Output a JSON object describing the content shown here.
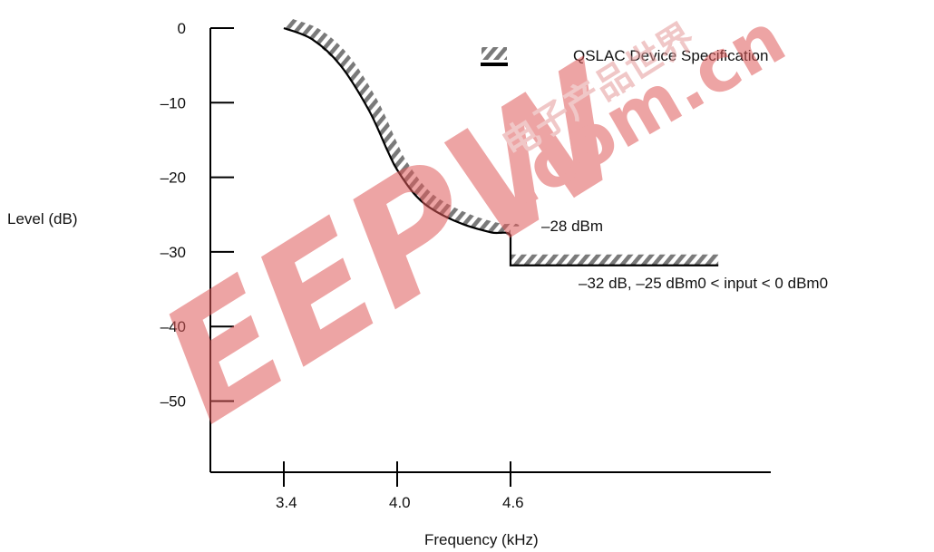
{
  "chart_data": {
    "type": "line",
    "xlabel": "Frequency (kHz)",
    "ylabel": "Level (dB)",
    "x_ticks": [
      {
        "value": 3.4,
        "label": "3.4"
      },
      {
        "value": 4.0,
        "label": "4.0"
      },
      {
        "value": 4.6,
        "label": "4.6"
      }
    ],
    "y_ticks": [
      {
        "value": 0,
        "label": "0"
      },
      {
        "value": -10,
        "label": "–10"
      },
      {
        "value": -20,
        "label": "–20"
      },
      {
        "value": -30,
        "label": "–30"
      },
      {
        "value": -40,
        "label": "–40"
      },
      {
        "value": -50,
        "label": "–50"
      }
    ],
    "xlim": [
      2.8,
      5.8
    ],
    "ylim": [
      -60,
      0
    ],
    "legend": {
      "label": "QSLAC Device Specification",
      "placement": "top-right"
    },
    "annotations": [
      {
        "text": "–28 dBm",
        "x": 4.6,
        "y": -27
      },
      {
        "text": "–32 dB, –25 dBm0 < input < 0 dBm0",
        "x": 5.1,
        "y": -34
      }
    ],
    "series": [
      {
        "name": "QSLAC Device Specification",
        "x": [
          3.4,
          3.55,
          3.7,
          3.85,
          3.95,
          4.0,
          4.1,
          4.2,
          4.35,
          4.5,
          4.6,
          4.6,
          5.7
        ],
        "y": [
          0,
          -1.5,
          -5,
          -11,
          -16.5,
          -19,
          -22.5,
          -24.5,
          -26.3,
          -27.4,
          -27.8,
          -31.8,
          -31.8
        ]
      }
    ],
    "colors": {
      "line": "#000000",
      "hatch": "#888888",
      "axis": "#000000"
    }
  },
  "watermark": {
    "logo": "EEPW",
    "domain": ".com.cn",
    "chinese": "电子产品世界",
    "color": "#e05a5a"
  }
}
